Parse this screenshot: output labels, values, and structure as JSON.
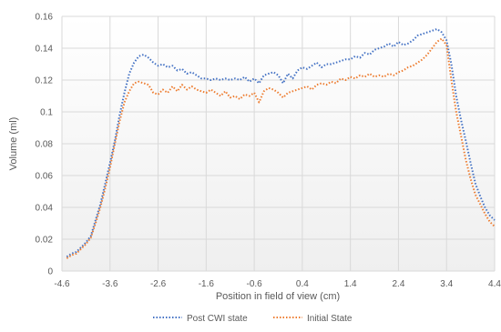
{
  "chart_data": {
    "type": "line",
    "xlabel": "Position in field of view (cm)",
    "ylabel": "Volume (ml)",
    "xlim": [
      -4.6,
      4.4
    ],
    "ylim": [
      0,
      0.16
    ],
    "x_ticks": [
      "-4.6",
      "-3.6",
      "-2.6",
      "-1.6",
      "-0.6",
      "0.4",
      "1.4",
      "2.4",
      "3.4",
      "4.4"
    ],
    "y_ticks": [
      "0",
      "0.02",
      "0.04",
      "0.06",
      "0.08",
      "0.1",
      "0.12",
      "0.14",
      "0.16"
    ],
    "grid": true,
    "legend_position": "bottom",
    "series": [
      {
        "name": "Post CWI state",
        "color": "#4472C4",
        "points": [
          [
            -4.5,
            0.009
          ],
          [
            -4.4,
            0.011
          ],
          [
            -4.3,
            0.012
          ],
          [
            -4.2,
            0.015
          ],
          [
            -4.1,
            0.018
          ],
          [
            -4.0,
            0.022
          ],
          [
            -3.9,
            0.032
          ],
          [
            -3.8,
            0.042
          ],
          [
            -3.7,
            0.055
          ],
          [
            -3.6,
            0.068
          ],
          [
            -3.5,
            0.082
          ],
          [
            -3.4,
            0.098
          ],
          [
            -3.3,
            0.112
          ],
          [
            -3.2,
            0.124
          ],
          [
            -3.1,
            0.131
          ],
          [
            -3.0,
            0.135
          ],
          [
            -2.9,
            0.136
          ],
          [
            -2.8,
            0.134
          ],
          [
            -2.7,
            0.131
          ],
          [
            -2.6,
            0.129
          ],
          [
            -2.5,
            0.13
          ],
          [
            -2.4,
            0.128
          ],
          [
            -2.3,
            0.129
          ],
          [
            -2.2,
            0.126
          ],
          [
            -2.1,
            0.127
          ],
          [
            -2.0,
            0.124
          ],
          [
            -1.9,
            0.125
          ],
          [
            -1.8,
            0.123
          ],
          [
            -1.7,
            0.121
          ],
          [
            -1.6,
            0.121
          ],
          [
            -1.5,
            0.12
          ],
          [
            -1.4,
            0.121
          ],
          [
            -1.3,
            0.12
          ],
          [
            -1.2,
            0.121
          ],
          [
            -1.1,
            0.12
          ],
          [
            -1.0,
            0.121
          ],
          [
            -0.9,
            0.12
          ],
          [
            -0.8,
            0.122
          ],
          [
            -0.7,
            0.119
          ],
          [
            -0.6,
            0.121
          ],
          [
            -0.5,
            0.118
          ],
          [
            -0.4,
            0.123
          ],
          [
            -0.3,
            0.124
          ],
          [
            -0.2,
            0.125
          ],
          [
            -0.1,
            0.123
          ],
          [
            0.0,
            0.118
          ],
          [
            0.1,
            0.124
          ],
          [
            0.2,
            0.121
          ],
          [
            0.3,
            0.126
          ],
          [
            0.4,
            0.128
          ],
          [
            0.5,
            0.127
          ],
          [
            0.6,
            0.129
          ],
          [
            0.7,
            0.131
          ],
          [
            0.8,
            0.128
          ],
          [
            0.9,
            0.13
          ],
          [
            1.0,
            0.13
          ],
          [
            1.1,
            0.131
          ],
          [
            1.2,
            0.132
          ],
          [
            1.3,
            0.133
          ],
          [
            1.4,
            0.133
          ],
          [
            1.5,
            0.135
          ],
          [
            1.6,
            0.134
          ],
          [
            1.7,
            0.137
          ],
          [
            1.8,
            0.136
          ],
          [
            1.9,
            0.139
          ],
          [
            2.0,
            0.14
          ],
          [
            2.1,
            0.141
          ],
          [
            2.2,
            0.143
          ],
          [
            2.3,
            0.141
          ],
          [
            2.4,
            0.144
          ],
          [
            2.5,
            0.142
          ],
          [
            2.6,
            0.143
          ],
          [
            2.7,
            0.145
          ],
          [
            2.8,
            0.148
          ],
          [
            2.9,
            0.149
          ],
          [
            3.0,
            0.15
          ],
          [
            3.1,
            0.151
          ],
          [
            3.2,
            0.152
          ],
          [
            3.3,
            0.15
          ],
          [
            3.4,
            0.145
          ],
          [
            3.5,
            0.13
          ],
          [
            3.6,
            0.11
          ],
          [
            3.7,
            0.095
          ],
          [
            3.8,
            0.082
          ],
          [
            3.9,
            0.068
          ],
          [
            4.0,
            0.055
          ],
          [
            4.1,
            0.047
          ],
          [
            4.2,
            0.04
          ],
          [
            4.3,
            0.035
          ],
          [
            4.4,
            0.032
          ]
        ]
      },
      {
        "name": "Initial State",
        "color": "#ED7D31",
        "points": [
          [
            -4.5,
            0.008
          ],
          [
            -4.4,
            0.01
          ],
          [
            -4.3,
            0.011
          ],
          [
            -4.2,
            0.014
          ],
          [
            -4.1,
            0.017
          ],
          [
            -4.0,
            0.021
          ],
          [
            -3.9,
            0.03
          ],
          [
            -3.8,
            0.04
          ],
          [
            -3.7,
            0.052
          ],
          [
            -3.6,
            0.065
          ],
          [
            -3.5,
            0.08
          ],
          [
            -3.4,
            0.094
          ],
          [
            -3.3,
            0.106
          ],
          [
            -3.2,
            0.113
          ],
          [
            -3.1,
            0.118
          ],
          [
            -3.0,
            0.119
          ],
          [
            -2.9,
            0.118
          ],
          [
            -2.8,
            0.117
          ],
          [
            -2.7,
            0.112
          ],
          [
            -2.6,
            0.111
          ],
          [
            -2.5,
            0.114
          ],
          [
            -2.4,
            0.112
          ],
          [
            -2.3,
            0.116
          ],
          [
            -2.2,
            0.113
          ],
          [
            -2.1,
            0.117
          ],
          [
            -2.0,
            0.114
          ],
          [
            -1.9,
            0.116
          ],
          [
            -1.8,
            0.114
          ],
          [
            -1.7,
            0.113
          ],
          [
            -1.6,
            0.112
          ],
          [
            -1.5,
            0.114
          ],
          [
            -1.4,
            0.112
          ],
          [
            -1.3,
            0.11
          ],
          [
            -1.2,
            0.113
          ],
          [
            -1.1,
            0.109
          ],
          [
            -1.0,
            0.11
          ],
          [
            -0.9,
            0.108
          ],
          [
            -0.8,
            0.111
          ],
          [
            -0.7,
            0.11
          ],
          [
            -0.6,
            0.112
          ],
          [
            -0.5,
            0.106
          ],
          [
            -0.4,
            0.113
          ],
          [
            -0.3,
            0.115
          ],
          [
            -0.2,
            0.114
          ],
          [
            -0.1,
            0.112
          ],
          [
            0.0,
            0.109
          ],
          [
            0.1,
            0.112
          ],
          [
            0.2,
            0.113
          ],
          [
            0.3,
            0.114
          ],
          [
            0.4,
            0.115
          ],
          [
            0.5,
            0.116
          ],
          [
            0.6,
            0.114
          ],
          [
            0.7,
            0.117
          ],
          [
            0.8,
            0.118
          ],
          [
            0.9,
            0.117
          ],
          [
            1.0,
            0.119
          ],
          [
            1.1,
            0.118
          ],
          [
            1.2,
            0.121
          ],
          [
            1.3,
            0.12
          ],
          [
            1.4,
            0.122
          ],
          [
            1.5,
            0.121
          ],
          [
            1.6,
            0.123
          ],
          [
            1.7,
            0.122
          ],
          [
            1.8,
            0.124
          ],
          [
            1.9,
            0.122
          ],
          [
            2.0,
            0.123
          ],
          [
            2.1,
            0.122
          ],
          [
            2.2,
            0.124
          ],
          [
            2.3,
            0.123
          ],
          [
            2.4,
            0.125
          ],
          [
            2.5,
            0.126
          ],
          [
            2.6,
            0.128
          ],
          [
            2.7,
            0.129
          ],
          [
            2.8,
            0.131
          ],
          [
            2.9,
            0.133
          ],
          [
            3.0,
            0.136
          ],
          [
            3.1,
            0.14
          ],
          [
            3.2,
            0.144
          ],
          [
            3.3,
            0.146
          ],
          [
            3.4,
            0.142
          ],
          [
            3.5,
            0.12
          ],
          [
            3.6,
            0.1
          ],
          [
            3.7,
            0.085
          ],
          [
            3.8,
            0.07
          ],
          [
            3.9,
            0.058
          ],
          [
            4.0,
            0.048
          ],
          [
            4.1,
            0.042
          ],
          [
            4.2,
            0.036
          ],
          [
            4.3,
            0.031
          ],
          [
            4.4,
            0.028
          ]
        ]
      }
    ]
  }
}
